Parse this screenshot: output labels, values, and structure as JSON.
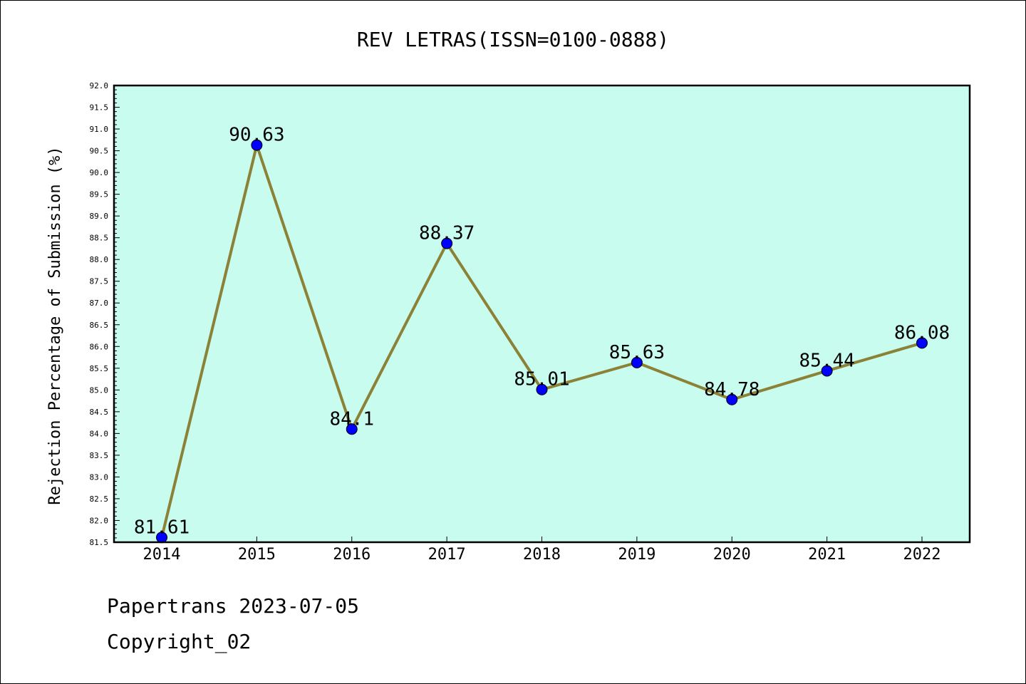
{
  "chart_data": {
    "type": "line",
    "title": "REV LETRAS(ISSN=0100-0888)",
    "xlabel": "",
    "ylabel": "Rejection Percentage of Submission (%)",
    "categories": [
      "2014",
      "2015",
      "2016",
      "2017",
      "2018",
      "2019",
      "2020",
      "2021",
      "2022"
    ],
    "series": [
      {
        "values": [
          81.61,
          90.63,
          84.1,
          88.37,
          85.01,
          85.63,
          84.78,
          85.44,
          86.08
        ],
        "data_labels": [
          "81.61",
          "90.63",
          "84.1",
          "88.37",
          "85.01",
          "85.63",
          "84.78",
          "85.44",
          "86.08"
        ]
      }
    ],
    "ylim": [
      81.5,
      92.0
    ],
    "yticks": [
      "81.5",
      "82.0",
      "82.5",
      "83.0",
      "83.5",
      "84.0",
      "84.5",
      "85.0",
      "85.5",
      "86.0",
      "86.5",
      "87.0",
      "87.5",
      "88.0",
      "88.5",
      "89.0",
      "89.5",
      "90.0",
      "90.5",
      "91.0",
      "91.5",
      "92.0"
    ],
    "grid": false,
    "colors": {
      "plot_background": "#c8fcee",
      "line": "#8b8237",
      "marker": "#0000ff"
    }
  },
  "footer": {
    "line1": "Papertrans 2023-07-05",
    "line2": "Copyright_02"
  }
}
